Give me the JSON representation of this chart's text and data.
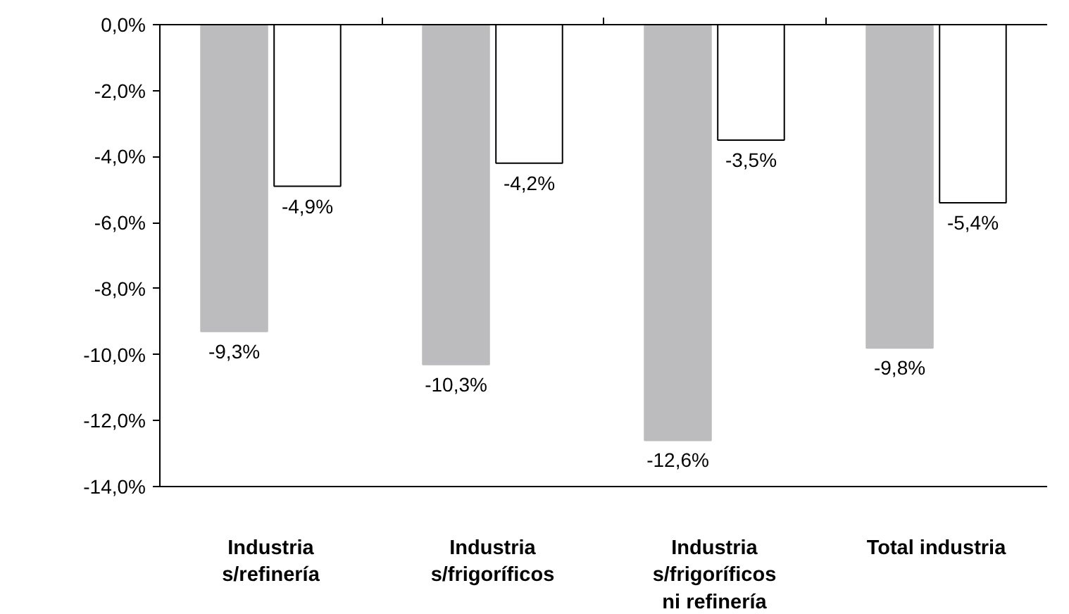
{
  "chart_data": {
    "type": "bar",
    "categories": [
      "Industria\ns/refinería",
      "Industria\ns/frigoríficos",
      "Industria\ns/frigoríficos\nni refinería",
      "Total industria"
    ],
    "series": [
      {
        "color": "#bcbcbe",
        "values": [
          -9.3,
          -10.3,
          -12.6,
          -9.8
        ],
        "value_labels": [
          "-9,3%",
          "-10,3%",
          "-12,6%",
          "-9,8%"
        ]
      },
      {
        "color": "#ffffff",
        "values": [
          -4.9,
          -4.2,
          -3.5,
          -5.4
        ],
        "value_labels": [
          "-4,9%",
          "-4,2%",
          "-3,5%",
          "-5,4%"
        ]
      }
    ],
    "ylim": [
      -14,
      0
    ],
    "yticks": [
      {
        "value": 0,
        "label": "0,0%"
      },
      {
        "value": -2,
        "label": "-2,0%"
      },
      {
        "value": -4,
        "label": "-4,0%"
      },
      {
        "value": -6,
        "label": "-6,0%"
      },
      {
        "value": -8,
        "label": "-8,0%"
      },
      {
        "value": -10,
        "label": "-10,0%"
      },
      {
        "value": -12,
        "label": "-12,0%"
      },
      {
        "value": -14,
        "label": "-14,0%"
      }
    ],
    "grid": false
  }
}
